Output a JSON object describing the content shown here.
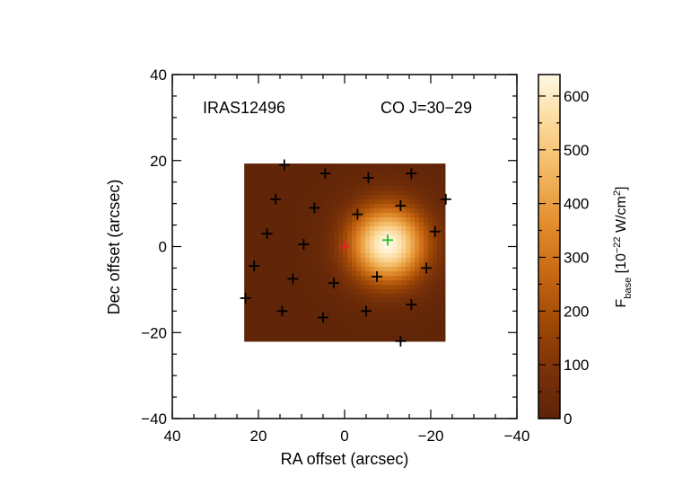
{
  "chart_data": {
    "type": "heatmap",
    "annotations": [
      "IRAS12496",
      "CO J=30−29"
    ],
    "xlabel": "RA offset (arcsec)",
    "ylabel": "Dec offset (arcsec)",
    "xlim": [
      40,
      -40
    ],
    "ylim": [
      -40,
      40
    ],
    "xticks": [
      40,
      20,
      0,
      -20,
      -40
    ],
    "yticks": [
      -40,
      -20,
      0,
      20,
      40
    ],
    "xtick_labels": [
      "40",
      "20",
      "0",
      "−20",
      "−40"
    ],
    "ytick_labels": [
      "−40",
      "−20",
      "0",
      "20",
      "40"
    ],
    "map_extent": {
      "x": [
        23.3,
        -23.3
      ],
      "y": [
        -22,
        19.3
      ]
    },
    "peak": {
      "x": -10,
      "y": 0.5,
      "value": 640,
      "sigma": 6.2
    },
    "background_value": 15,
    "center_marker": {
      "x": 0,
      "y": 0,
      "color": "#e8202a"
    },
    "peak_marker": {
      "x": -10,
      "y": 1.5,
      "color": "#22c02a"
    },
    "spaxels": [
      {
        "x": 14,
        "y": 19
      },
      {
        "x": 4.5,
        "y": 17
      },
      {
        "x": -15.5,
        "y": 17
      },
      {
        "x": 16,
        "y": 11
      },
      {
        "x": 7,
        "y": 9
      },
      {
        "x": -13,
        "y": 9.5
      },
      {
        "x": -23.5,
        "y": 11
      },
      {
        "x": -5.5,
        "y": 16
      },
      {
        "x": -3,
        "y": 7.5
      },
      {
        "x": 18,
        "y": 3
      },
      {
        "x": 9.5,
        "y": 0.5
      },
      {
        "x": -21,
        "y": 3.5
      },
      {
        "x": 21,
        "y": -4.5
      },
      {
        "x": 12,
        "y": -7.5
      },
      {
        "x": 2.5,
        "y": -8.5
      },
      {
        "x": -7.5,
        "y": -7
      },
      {
        "x": -19,
        "y": -5
      },
      {
        "x": 23,
        "y": -12
      },
      {
        "x": 14.5,
        "y": -15
      },
      {
        "x": 5,
        "y": -16.5
      },
      {
        "x": -5,
        "y": -15
      },
      {
        "x": -15.5,
        "y": -13.5
      },
      {
        "x": -13,
        "y": -22
      }
    ],
    "colorbar": {
      "label_main": "F",
      "label_sub": "base",
      "label_unit_pre": " [10",
      "label_exp1": "−22",
      "label_unit_mid": " W/cm",
      "label_exp2": "2",
      "label_unit_end": "]",
      "range": [
        0,
        640
      ],
      "ticks": [
        0,
        100,
        200,
        300,
        400,
        500,
        600
      ],
      "tick_labels": [
        "0",
        "100",
        "200",
        "300",
        "400",
        "500",
        "600"
      ],
      "colormap": [
        "#5c2308",
        "#7a3208",
        "#a04a06",
        "#c96a14",
        "#e38f30",
        "#f2b660",
        "#fbd99a",
        "#fff8e3"
      ]
    }
  }
}
